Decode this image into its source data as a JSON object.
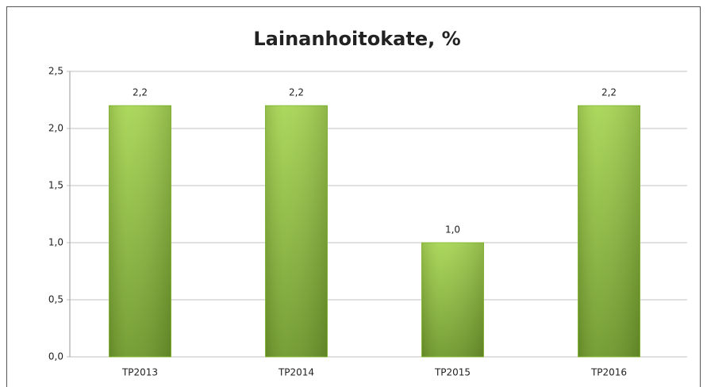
{
  "chart_data": {
    "type": "bar",
    "title": "Lainanhoitokate, %",
    "categories": [
      "TP2013",
      "TP2014",
      "TP2015",
      "TP2016"
    ],
    "values": [
      2.2,
      2.2,
      1.0,
      2.2
    ],
    "value_labels": [
      "2,2",
      "2,2",
      "1,0",
      "2,2"
    ],
    "color": "#8cbf3a",
    "ylim": [
      0,
      2.5
    ],
    "yticks": [
      {
        "value": 0,
        "label": "0,0"
      },
      {
        "value": 0.5,
        "label": "0,5"
      },
      {
        "value": 1,
        "label": "1,0"
      },
      {
        "value": 1.5,
        "label": "1,5"
      },
      {
        "value": 2,
        "label": "2,0"
      },
      {
        "value": 2.5,
        "label": "2,5"
      }
    ],
    "grid": true
  }
}
